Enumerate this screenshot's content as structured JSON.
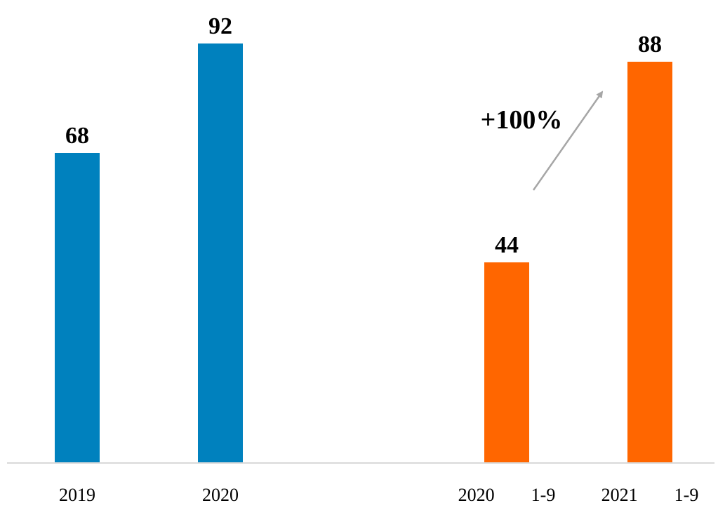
{
  "chart_data": {
    "type": "bar",
    "categories": [
      "2019",
      "2020",
      "2020　　1-9",
      "2021　　1-9"
    ],
    "values": [
      68,
      92,
      44,
      88
    ],
    "bar_colors": [
      "#0081be",
      "#0081be",
      "#ff6600",
      "#ff6600"
    ],
    "data_labels": [
      "68",
      "92",
      "44",
      "88"
    ],
    "annotation": {
      "text": "+100%",
      "from_category": "2020　　1-9",
      "to_category": "2021　　1-9"
    },
    "ylim": [
      0,
      100
    ],
    "grid": false,
    "axis_color": "#d9d9d9",
    "arrow_color": "#a6a6a6"
  }
}
